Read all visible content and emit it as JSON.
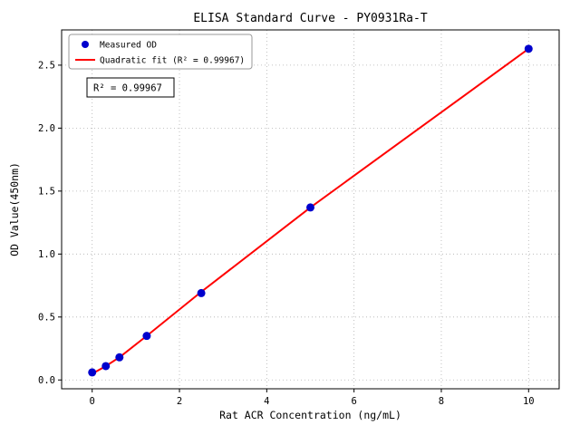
{
  "chart_data": {
    "type": "scatter",
    "title": "ELISA Standard Curve - PY0931Ra-T",
    "xlabel": "Rat ACR Concentration (ng/mL)",
    "ylabel": "OD Value(450nm)",
    "xlim": [
      -0.7,
      10.7
    ],
    "ylim": [
      -0.07,
      2.78
    ],
    "xticks": [
      0,
      2,
      4,
      6,
      8,
      10
    ],
    "yticks": [
      0.0,
      0.5,
      1.0,
      1.5,
      2.0,
      2.5
    ],
    "grid": true,
    "legend_position": "upper left",
    "annotation": "R² = 0.99967",
    "series": [
      {
        "name": "Measured OD",
        "kind": "scatter",
        "color": "#0000cd",
        "x": [
          0,
          0.3125,
          0.625,
          1.25,
          2.5,
          5,
          10
        ],
        "y": [
          0.06,
          0.11,
          0.18,
          0.35,
          0.69,
          1.37,
          2.63
        ]
      },
      {
        "name": "Quadratic fit (R² = 0.99967)",
        "kind": "line",
        "color": "#ff0000",
        "x": [
          0,
          0.3125,
          0.625,
          1.25,
          2.5,
          5,
          10
        ],
        "y": [
          0.05,
          0.11,
          0.18,
          0.35,
          0.7,
          1.37,
          2.63
        ]
      }
    ]
  }
}
